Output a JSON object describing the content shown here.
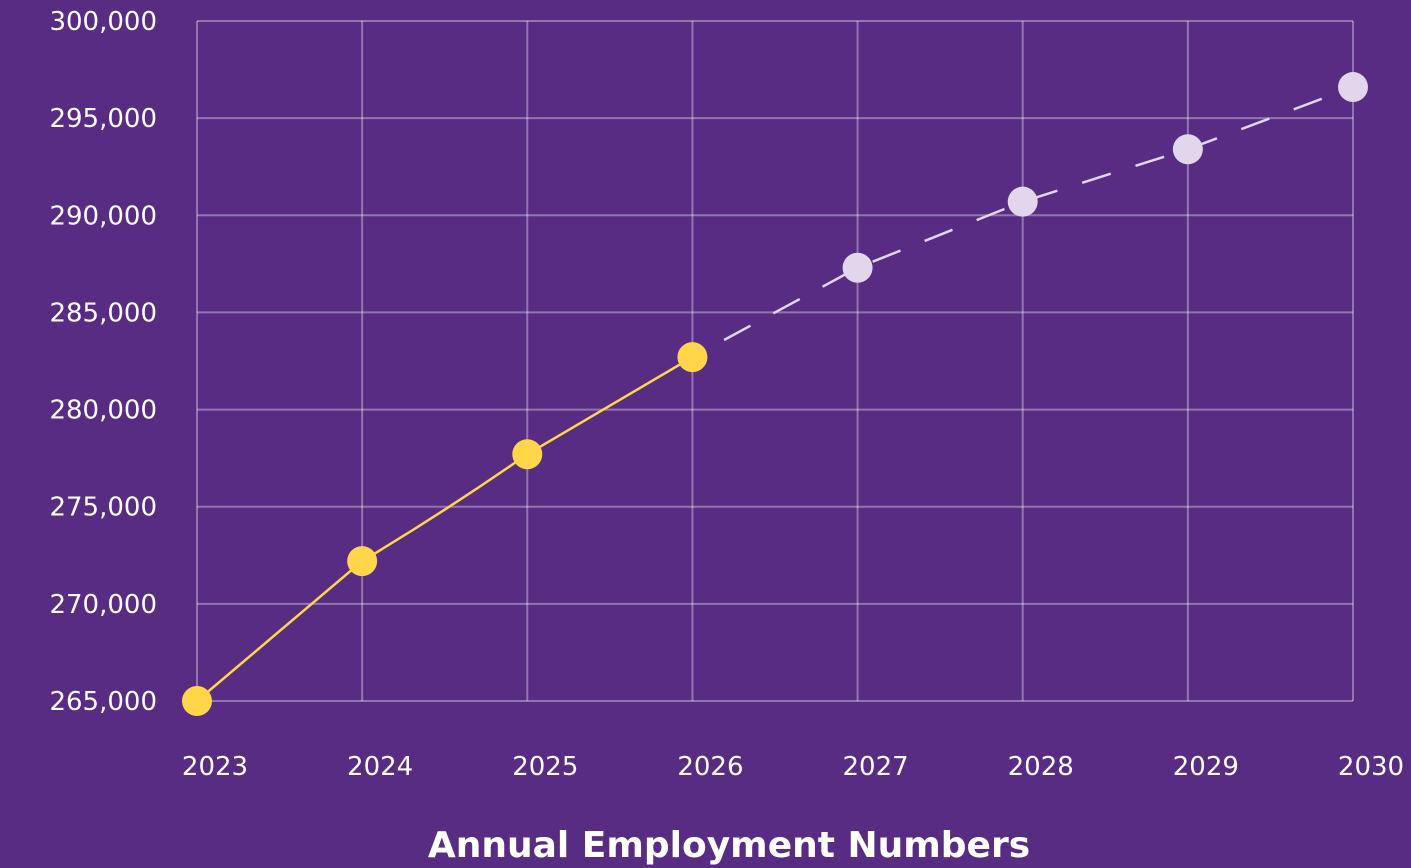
{
  "colors": {
    "background": "#582c83",
    "grid": "#a58cc0",
    "actual": "#ffd54a",
    "projected": "#e2d6ec",
    "text": "#ffffff"
  },
  "chart_data": {
    "type": "line",
    "title": "",
    "xlabel": "Annual Employment Numbers",
    "ylabel": "",
    "x": [
      "2023",
      "2024",
      "2025",
      "2026",
      "2027",
      "2028",
      "2029",
      "2030"
    ],
    "ylim": [
      265000,
      300000
    ],
    "yticks": [
      "265,000",
      "270,000",
      "275,000",
      "280,000",
      "285,000",
      "290,000",
      "295,000",
      "300,000"
    ],
    "grid": true,
    "series": [
      {
        "style": "solid",
        "x": [
          "2023",
          "2024",
          "2025",
          "2026"
        ],
        "values": [
          265000,
          272200,
          277700,
          282700
        ]
      },
      {
        "style": "dashed",
        "x": [
          "2026",
          "2027",
          "2028",
          "2029",
          "2030"
        ],
        "values": [
          282700,
          287300,
          290700,
          293400,
          296600
        ]
      }
    ]
  }
}
